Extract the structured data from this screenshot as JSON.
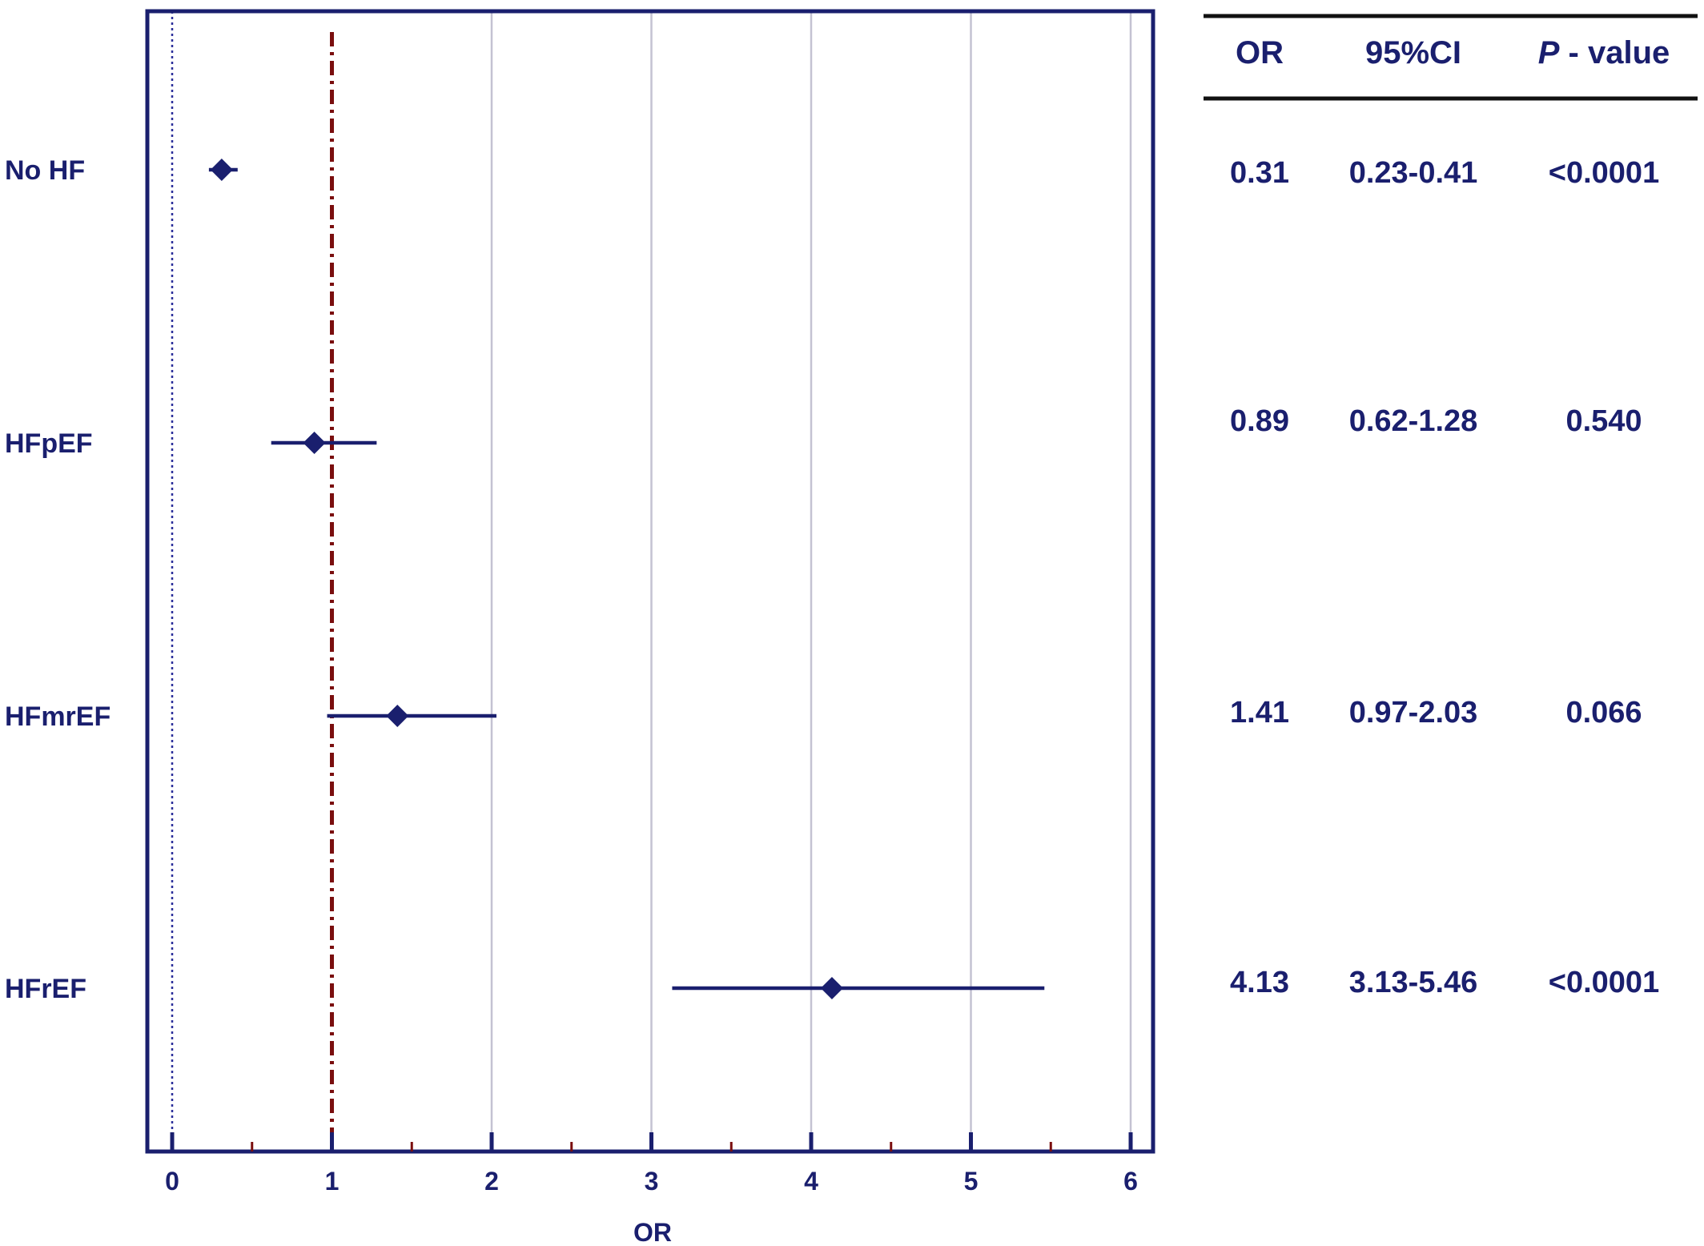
{
  "chart_data": {
    "type": "forest",
    "xlabel": "OR",
    "xlim": [
      -0.15,
      6.15
    ],
    "xticks": [
      0,
      1,
      2,
      3,
      4,
      5,
      6
    ],
    "minor_ticks": [
      0.5,
      1.5,
      2.5,
      3.5,
      4.5,
      5.5
    ],
    "reference_line": 1,
    "zero_line": 0,
    "grid": true,
    "rows": [
      {
        "label": "No HF",
        "or": 0.31,
        "lo": 0.23,
        "hi": 0.41,
        "or_text": "0.31",
        "ci_text": "0.23-0.41",
        "p_text": "<0.0001"
      },
      {
        "label": "HFpEF",
        "or": 0.89,
        "lo": 0.62,
        "hi": 1.28,
        "or_text": "0.89",
        "ci_text": "0.62-1.28",
        "p_text": "0.540"
      },
      {
        "label": "HFmrEF",
        "or": 1.41,
        "lo": 0.97,
        "hi": 2.03,
        "or_text": "1.41",
        "ci_text": "0.97-2.03",
        "p_text": "0.066"
      },
      {
        "label": "HFrEF",
        "or": 4.13,
        "lo": 3.13,
        "hi": 5.46,
        "or_text": "4.13",
        "ci_text": "3.13-5.46",
        "p_text": "<0.0001"
      }
    ],
    "table_headers": {
      "or": "OR",
      "ci": "95%CI",
      "p_italic": "P",
      "p_rest": " - value"
    },
    "colors": {
      "marker": "#1a1f6e",
      "frame": "#1a1f6e",
      "reference": "#7a0e0e",
      "grid": "#c4c2d2",
      "text": "#1a1f6e"
    }
  }
}
